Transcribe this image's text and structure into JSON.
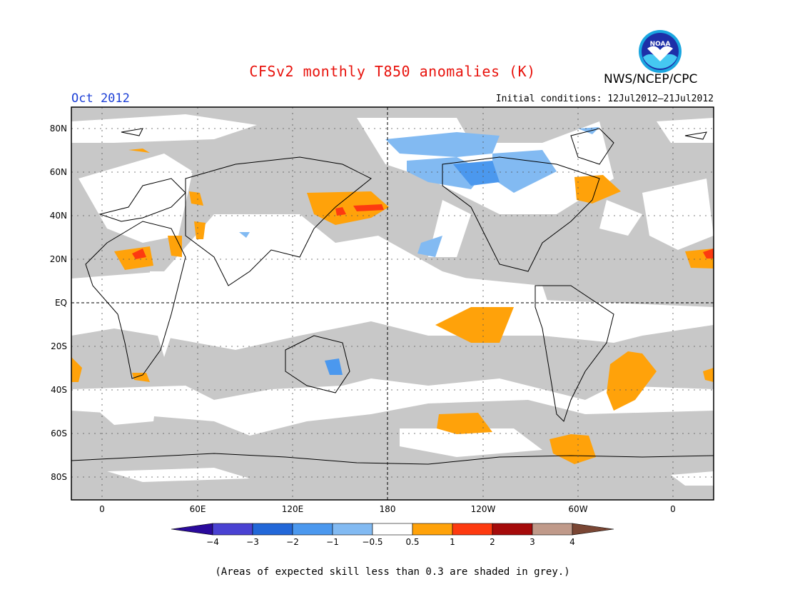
{
  "header": {
    "title": "CFSv2 monthly T850 anomalies (K)",
    "agency": "NWS/NCEP/CPC",
    "logo_text": "NOAA",
    "month": "Oct 2012",
    "initial_conditions": "Initial conditions: 12Jul2012–21Jul2012"
  },
  "map": {
    "lat_labels": [
      "80N",
      "60N",
      "40N",
      "20N",
      "EQ",
      "20S",
      "40S",
      "60S",
      "80S"
    ],
    "lon_labels": [
      "0",
      "60E",
      "120E",
      "180",
      "120W",
      "60W",
      "0"
    ],
    "colors": {
      "skill_grey": "#c8c8c8",
      "ocean": "#ffffff"
    }
  },
  "legend": {
    "tick_labels": [
      "−4",
      "−3",
      "−2",
      "−1",
      "−0.5",
      "0.5",
      "1",
      "2",
      "3",
      "4"
    ],
    "colors": [
      "#2a0a9c",
      "#4a42d2",
      "#2267d8",
      "#4b98ee",
      "#82baf2",
      "#ffffff",
      "#ffa20a",
      "#fd3a10",
      "#a50b0b",
      "#c09a8a",
      "#7a4634"
    ]
  },
  "footer": {
    "note": "(Areas of expected skill less than 0.3 are shaded in grey.)"
  }
}
